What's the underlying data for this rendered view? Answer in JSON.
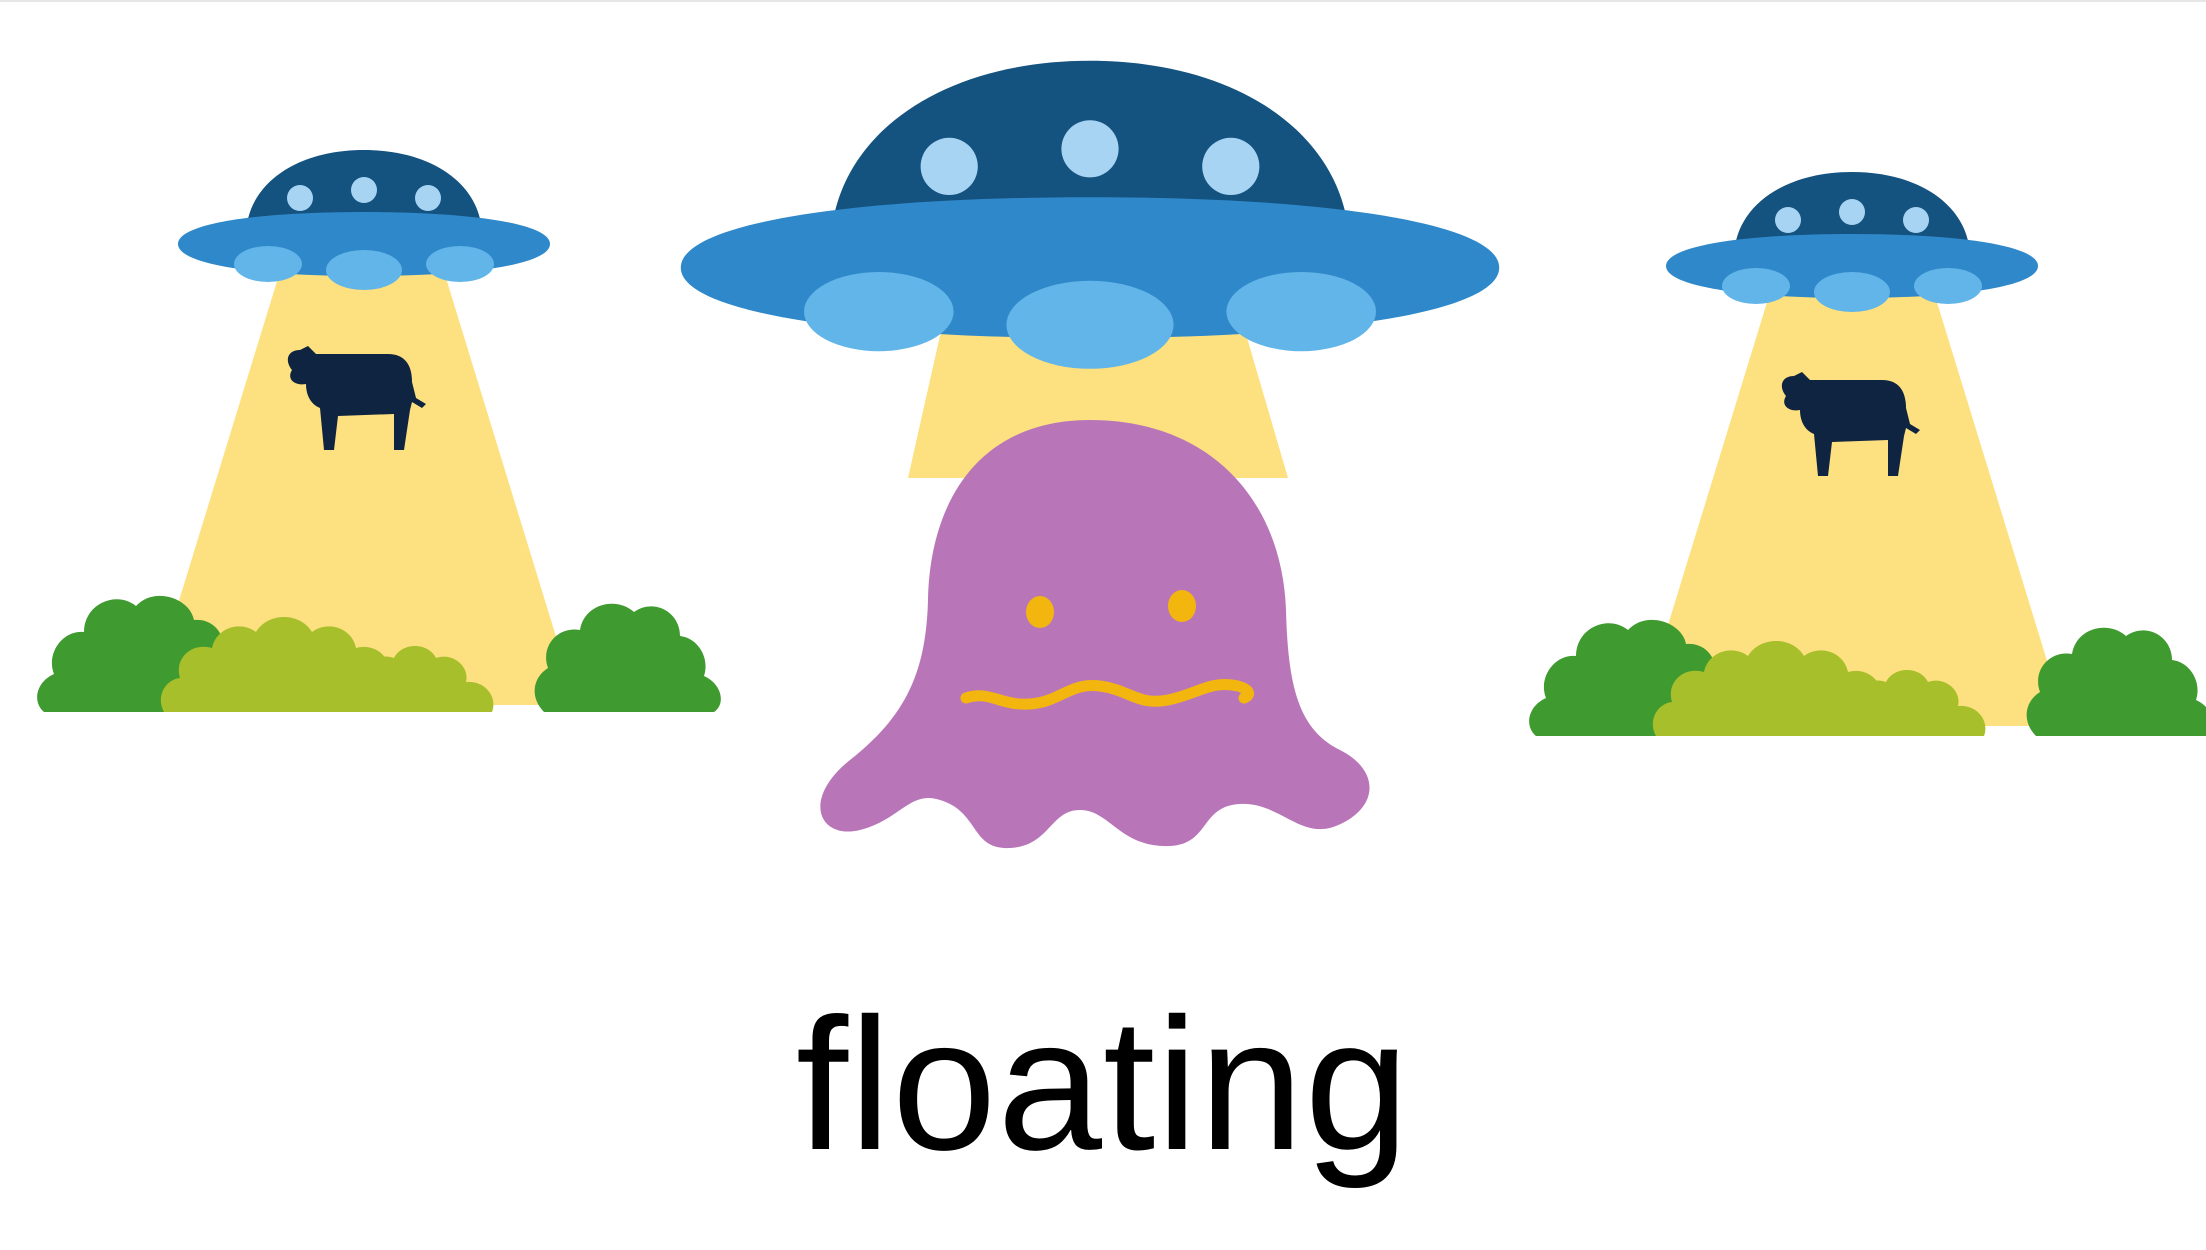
{
  "caption": "floating",
  "illustrations": [
    {
      "name": "ufo-abducting-cow-left",
      "icons": [
        "ufo-icon",
        "light-beam",
        "cow-icon",
        "bushes"
      ]
    },
    {
      "name": "ufo-with-ghost-center",
      "icons": [
        "ufo-icon",
        "light-beam",
        "ghost-icon"
      ]
    },
    {
      "name": "ufo-abducting-cow-right",
      "icons": [
        "ufo-icon",
        "light-beam",
        "cow-icon",
        "bushes"
      ]
    }
  ],
  "colors": {
    "ufo_dome": "#14527f",
    "ufo_body": "#2f88c9",
    "ufo_lights": "#a8d4f3",
    "ufo_pods": "#62b5e8",
    "beam": "#fde07f",
    "bush_dark": "#3f9a2f",
    "bush_light": "#a8bf2c",
    "cow": "#0f2440",
    "ghost": "#b876b8",
    "ghost_face": "#f3b60f",
    "caption": "#000000"
  }
}
